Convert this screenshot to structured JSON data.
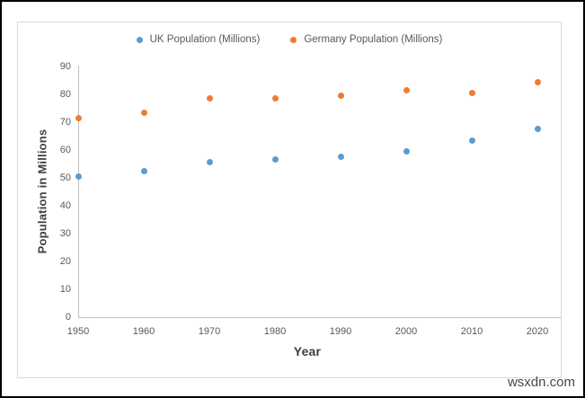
{
  "watermark": "wsxdn.com",
  "chart_data": {
    "type": "scatter",
    "x": [
      1950,
      1960,
      1970,
      1980,
      1990,
      2000,
      2010,
      2020
    ],
    "series": [
      {
        "name": "UK Population (Millions)",
        "color": "#5B9BD5",
        "values": [
          50.5,
          52.5,
          55.5,
          56.5,
          57.5,
          59.5,
          63.5,
          67.5
        ]
      },
      {
        "name": "Germany Population (Millions)",
        "color": "#ED7D31",
        "values": [
          71.5,
          73.5,
          78.5,
          78.5,
          79.5,
          81.5,
          80.5,
          84.5
        ]
      }
    ],
    "title": "",
    "xlabel": "Year",
    "ylabel": "Population in Millions",
    "xlim": [
      1950,
      2020
    ],
    "ylim": [
      0,
      90
    ],
    "ytick_step": 10,
    "xtick_step": 10,
    "grid": false,
    "legend_position": "top-center",
    "colors": {
      "axis_line": "#BFBFBF",
      "tick_label": "#595959",
      "axis_title": "#3F3F3F",
      "plot_border": "#D9D9D9",
      "frame_border": "#000000"
    }
  }
}
